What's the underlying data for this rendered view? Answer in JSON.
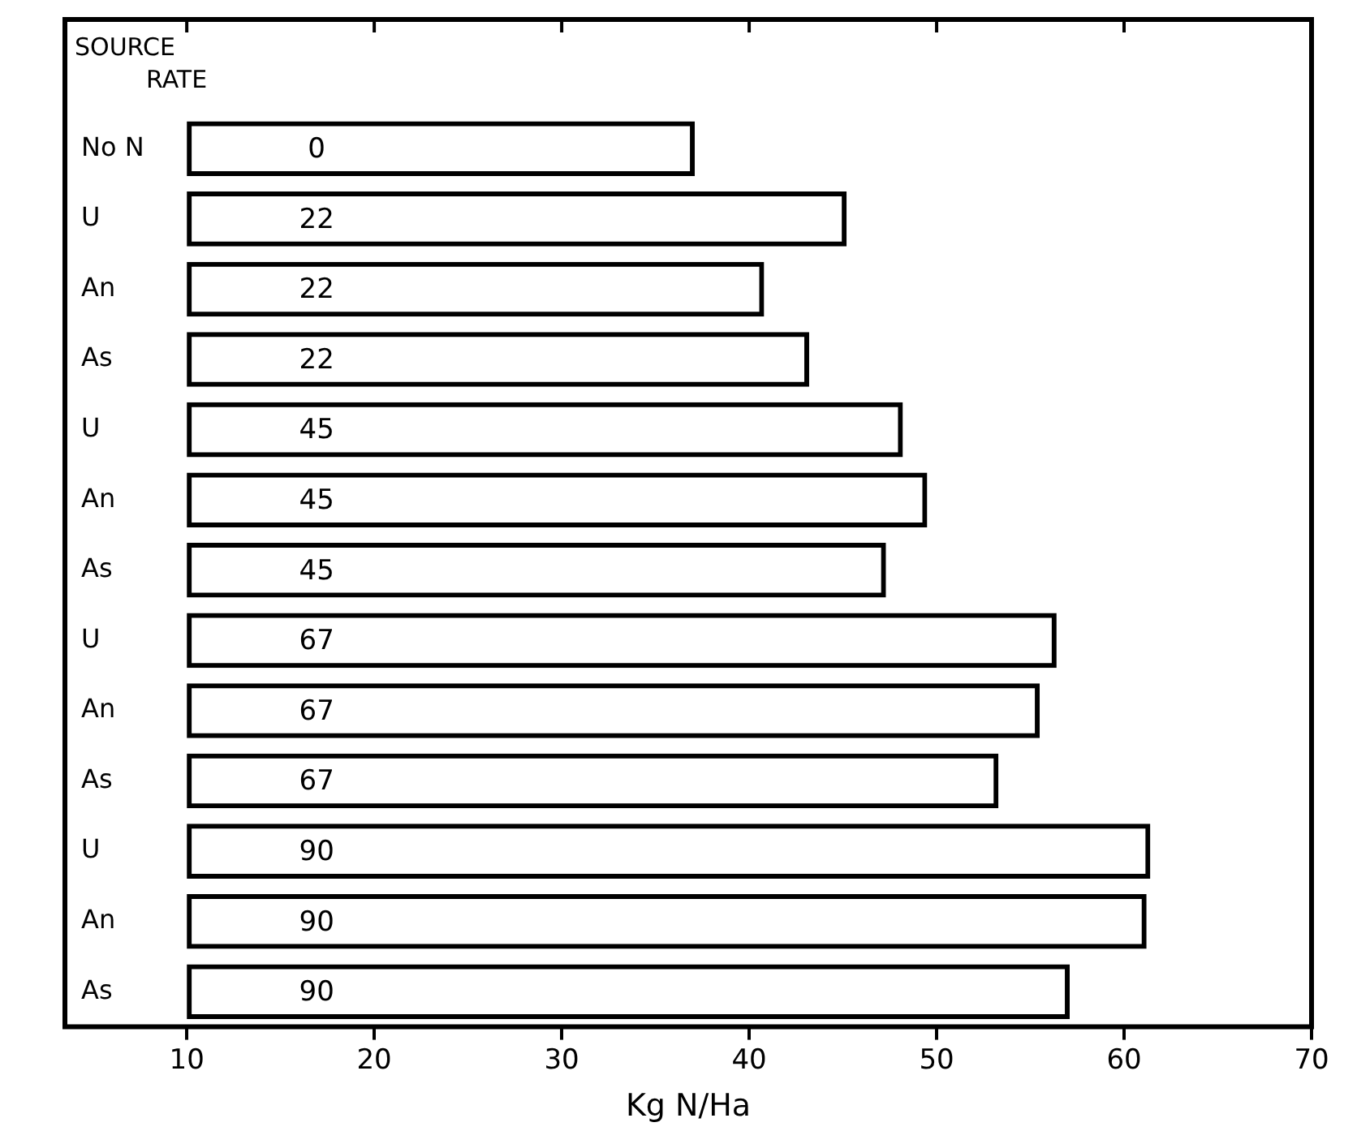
{
  "chart_data": {
    "type": "bar",
    "orientation": "horizontal",
    "xlabel": "Kg N/Ha",
    "categories": [
      "No N",
      "U",
      "An",
      "As",
      "U",
      "An",
      "As",
      "U",
      "An",
      "As",
      "U",
      "An",
      "As"
    ],
    "base": [
      10,
      10,
      10,
      10,
      10,
      10,
      10,
      10,
      10,
      10,
      10,
      10,
      10
    ],
    "values": [
      27.1,
      35.2,
      30.8,
      33.2,
      38.2,
      39.5,
      37.3,
      46.4,
      45.5,
      43.3,
      51.4,
      51.2,
      47.1
    ],
    "color": "#000000",
    "xlim": [
      3.5,
      70
    ],
    "xticks": [
      10,
      20,
      30,
      40,
      50,
      60,
      70
    ],
    "annotations": [
      "SOURCE",
      "RATE",
      "0",
      "22",
      "22",
      "22",
      "45",
      "45",
      "45",
      "67",
      "67",
      "67",
      "90",
      "90",
      "90"
    ]
  }
}
